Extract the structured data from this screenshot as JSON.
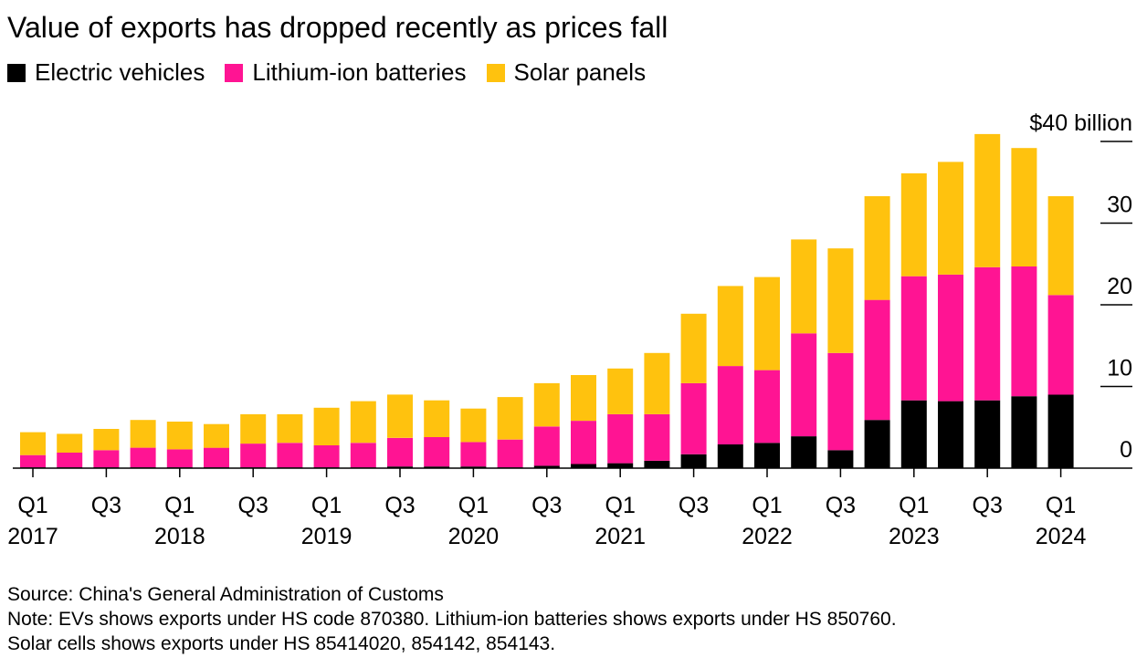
{
  "chart_data": {
    "type": "bar",
    "stacked": true,
    "title": "Value of exports has dropped recently as prices fall",
    "categories": [
      "Q1 2017",
      "Q2 2017",
      "Q3 2017",
      "Q4 2017",
      "Q1 2018",
      "Q2 2018",
      "Q3 2018",
      "Q4 2018",
      "Q1 2019",
      "Q2 2019",
      "Q3 2019",
      "Q4 2019",
      "Q1 2020",
      "Q2 2020",
      "Q3 2020",
      "Q4 2020",
      "Q1 2021",
      "Q2 2021",
      "Q3 2021",
      "Q4 2021",
      "Q1 2022",
      "Q2 2022",
      "Q3 2022",
      "Q4 2022",
      "Q1 2023",
      "Q2 2023",
      "Q3 2023",
      "Q4 2023",
      "Q1 2024"
    ],
    "series": [
      {
        "name": "Electric vehicles",
        "color": "#000000",
        "values": [
          0.1,
          0.1,
          0.1,
          0.1,
          0.1,
          0.1,
          0.1,
          0.1,
          0.1,
          0.1,
          0.2,
          0.2,
          0.2,
          0.1,
          0.3,
          0.5,
          0.6,
          0.9,
          1.7,
          2.9,
          3.1,
          3.9,
          2.2,
          5.9,
          8.3,
          8.2,
          8.3,
          8.8,
          9.0
        ]
      },
      {
        "name": "Lithium-ion batteries",
        "color": "#ff1493",
        "values": [
          1.5,
          1.8,
          2.1,
          2.4,
          2.2,
          2.4,
          2.9,
          3.0,
          2.7,
          3.0,
          3.5,
          3.6,
          3.0,
          3.4,
          4.8,
          5.3,
          6.0,
          5.7,
          8.7,
          9.6,
          8.9,
          12.6,
          11.9,
          14.7,
          15.2,
          15.5,
          16.3,
          15.9,
          12.2
        ]
      },
      {
        "name": "Solar panels",
        "color": "#ffc20e",
        "values": [
          2.8,
          2.3,
          2.6,
          3.4,
          3.4,
          2.9,
          3.6,
          3.5,
          4.6,
          5.1,
          5.3,
          4.5,
          4.1,
          5.2,
          5.3,
          5.6,
          5.6,
          7.5,
          8.5,
          9.8,
          11.4,
          11.5,
          12.8,
          12.7,
          12.6,
          13.8,
          16.3,
          14.5,
          12.1
        ]
      }
    ],
    "ylim": [
      0,
      40
    ],
    "y_ticks": [
      0,
      10,
      20,
      30,
      40
    ],
    "y_tick_labels": [
      "0",
      "10",
      "20",
      "30",
      "$40 billion"
    ],
    "x_tick_labels": [
      {
        "index": 0,
        "quarter": "Q1",
        "year": "2017"
      },
      {
        "index": 2,
        "quarter": "Q3",
        "year": ""
      },
      {
        "index": 4,
        "quarter": "Q1",
        "year": "2018"
      },
      {
        "index": 6,
        "quarter": "Q3",
        "year": ""
      },
      {
        "index": 8,
        "quarter": "Q1",
        "year": "2019"
      },
      {
        "index": 10,
        "quarter": "Q3",
        "year": ""
      },
      {
        "index": 12,
        "quarter": "Q1",
        "year": "2020"
      },
      {
        "index": 14,
        "quarter": "Q3",
        "year": ""
      },
      {
        "index": 16,
        "quarter": "Q1",
        "year": "2021"
      },
      {
        "index": 18,
        "quarter": "Q3",
        "year": ""
      },
      {
        "index": 20,
        "quarter": "Q1",
        "year": "2022"
      },
      {
        "index": 22,
        "quarter": "Q3",
        "year": ""
      },
      {
        "index": 24,
        "quarter": "Q1",
        "year": "2023"
      },
      {
        "index": 26,
        "quarter": "Q3",
        "year": ""
      },
      {
        "index": 28,
        "quarter": "Q1",
        "year": "2024"
      }
    ],
    "grid": false,
    "legend_position": "top-left"
  },
  "footer": {
    "source": "Source: China's General Administration of Customs",
    "note_line1": "Note: EVs shows exports under HS code 870380. Lithium-ion batteries shows exports under HS 850760.",
    "note_line2": "Solar cells shows exports under HS 85414020, 854142, 854143."
  }
}
